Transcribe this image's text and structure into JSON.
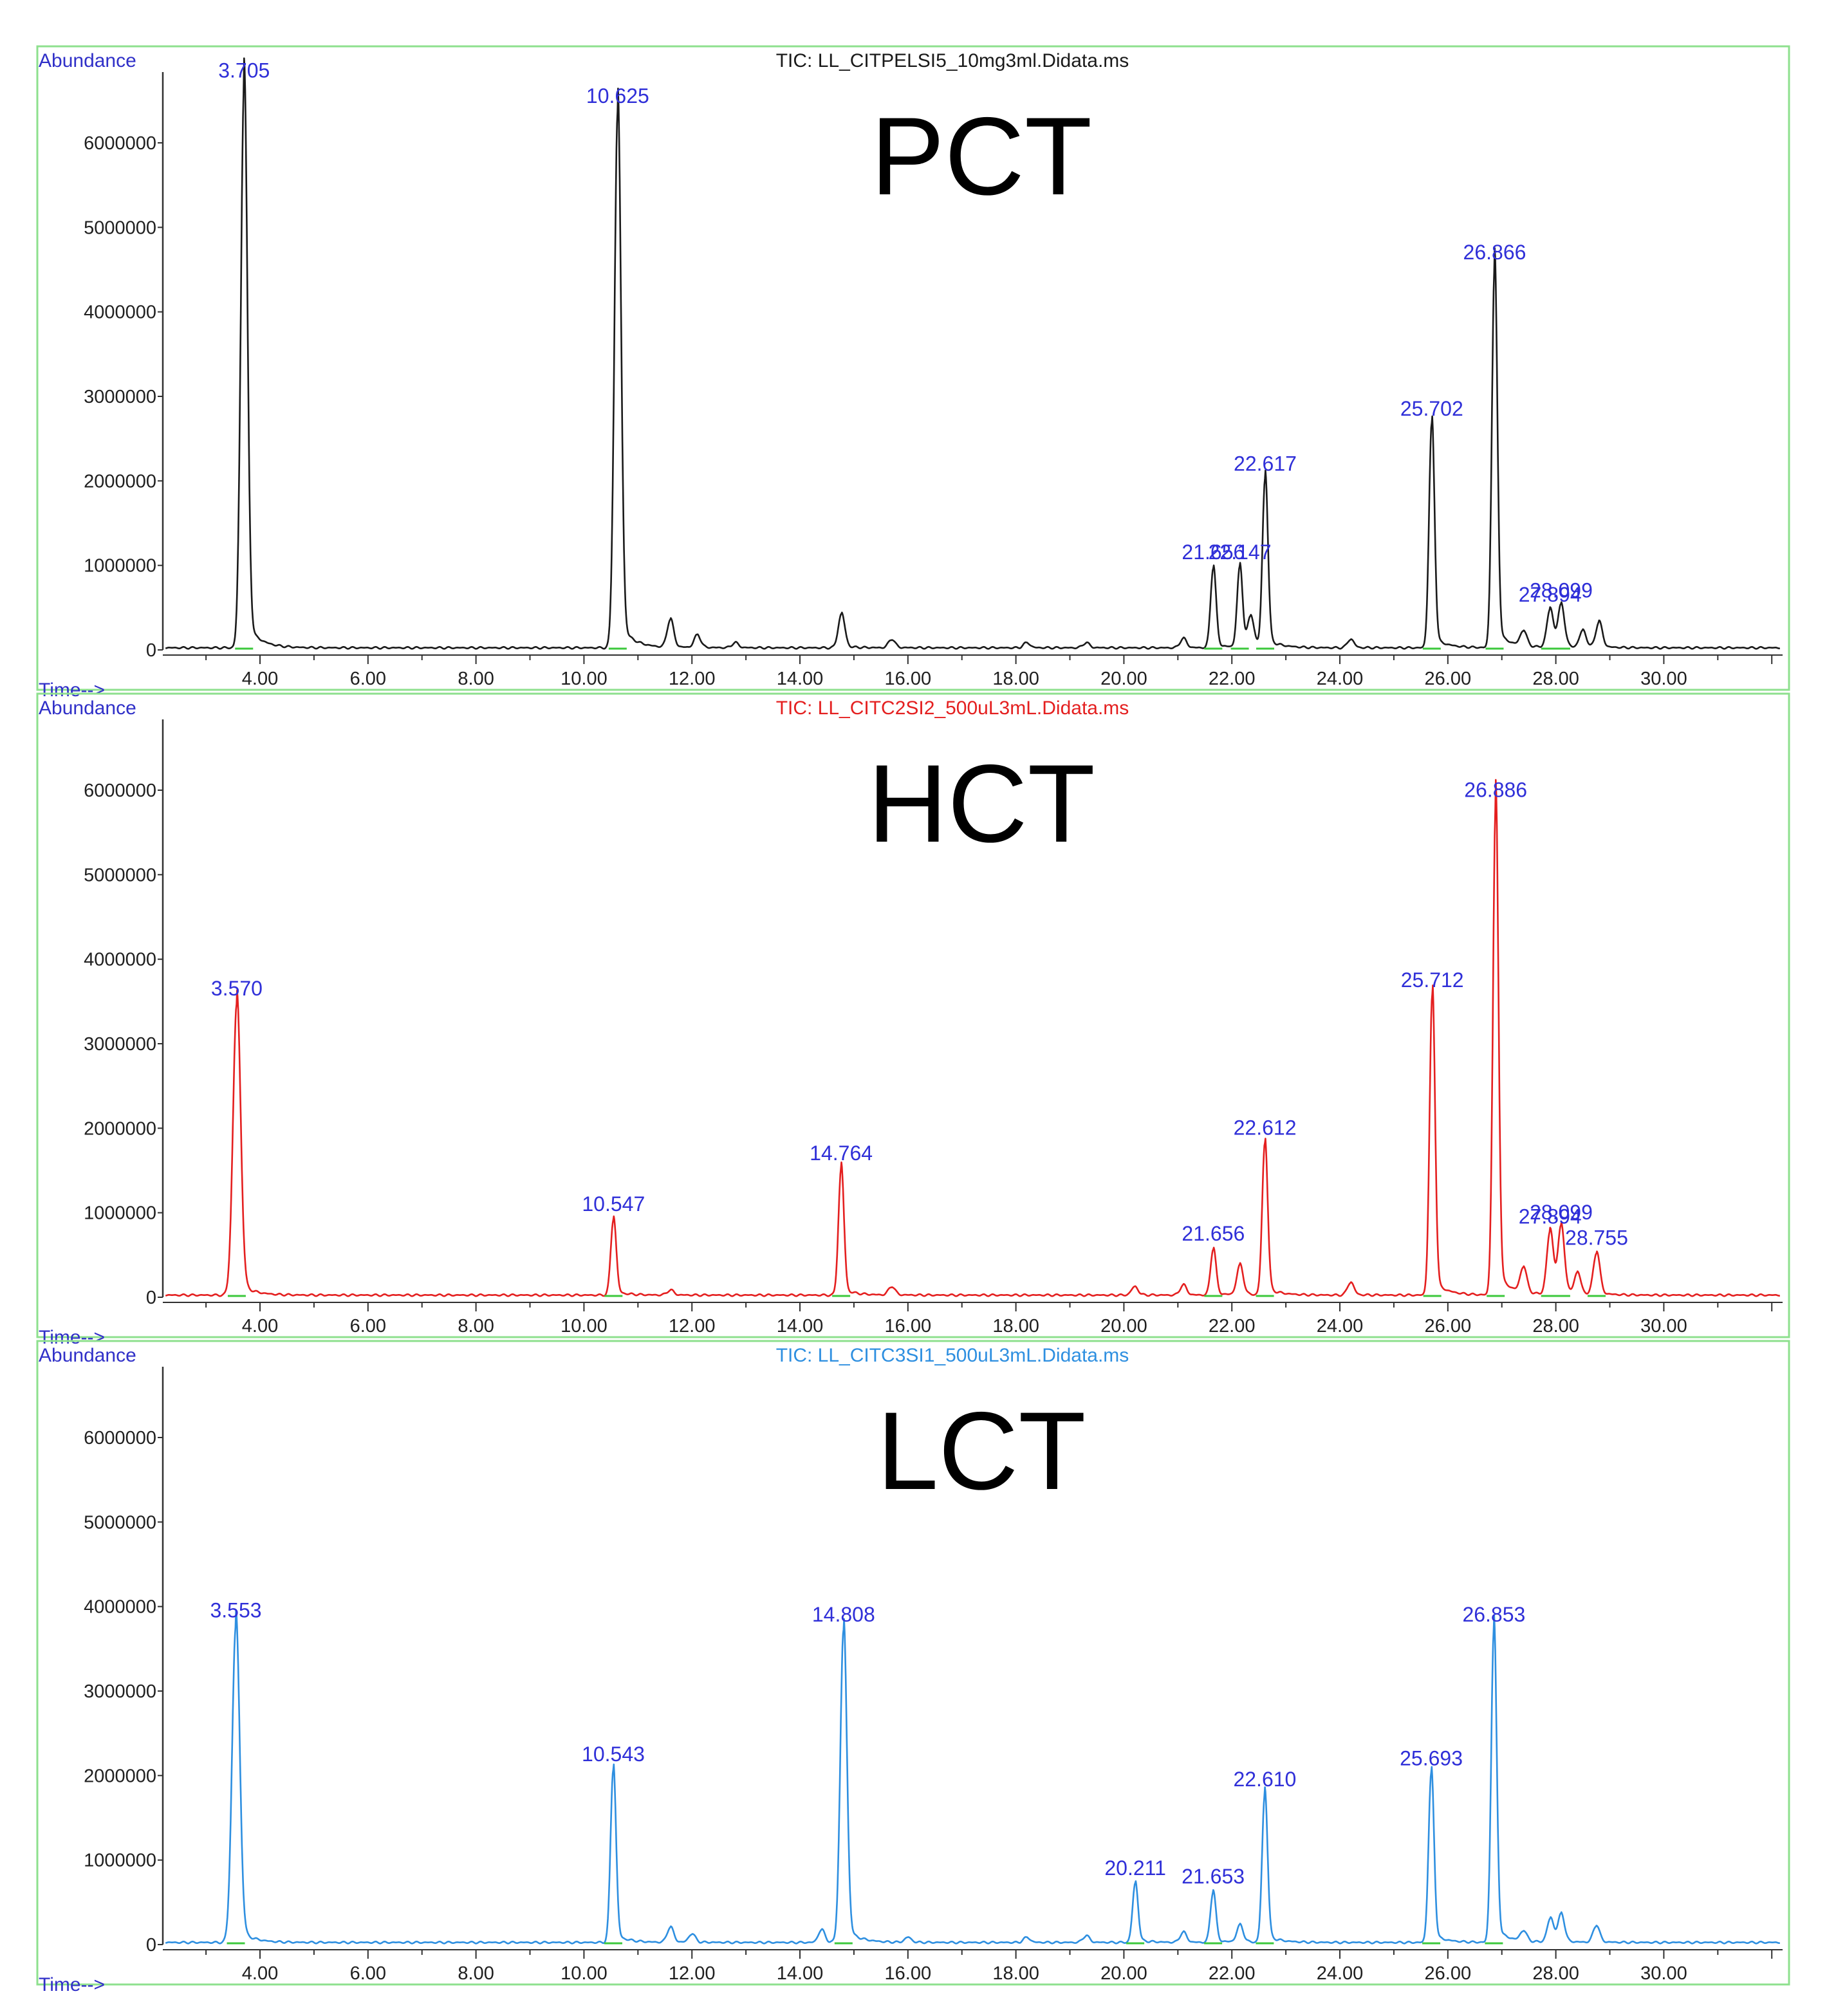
{
  "chart_data": [
    {
      "type": "line",
      "label": "PCT",
      "file_title": "TIC: LL_CITPELSI5_10mg3ml.Didata.ms",
      "ylabel": "Abundance",
      "xlabel": "Time-->",
      "xlim": [
        2.2,
        32.2
      ],
      "ylim": [
        0,
        6900000
      ],
      "xticks": [
        "4.00",
        "6.00",
        "8.00",
        "10.00",
        "12.00",
        "14.00",
        "16.00",
        "18.00",
        "20.00",
        "22.00",
        "24.00",
        "26.00",
        "28.00",
        "30.00"
      ],
      "yticks": [
        "0",
        "1000000",
        "2000000",
        "3000000",
        "4000000",
        "5000000",
        "6000000"
      ],
      "colors": {
        "line": "#1a1a1a",
        "text": "#1a1a1a"
      },
      "peaks": [
        {
          "label": "3.705",
          "x": 3.705,
          "y": 6650000,
          "width": 0.06
        },
        {
          "label": "10.625",
          "x": 10.625,
          "y": 6350000,
          "width": 0.06
        },
        {
          "label": "21.656",
          "x": 21.656,
          "y": 950000,
          "width": 0.05
        },
        {
          "label": "22.147",
          "x": 22.147,
          "y": 950000,
          "width": 0.05
        },
        {
          "label": "22.617",
          "x": 22.617,
          "y": 2000000,
          "width": 0.05
        },
        {
          "label": "25.702",
          "x": 25.702,
          "y": 2650000,
          "width": 0.05
        },
        {
          "label": "26.866",
          "x": 26.866,
          "y": 4500000,
          "width": 0.05
        },
        {
          "label": "27.894",
          "x": 27.894,
          "y": 450000,
          "width": 0.06
        },
        {
          "label": "28.099",
          "x": 28.099,
          "y": 500000,
          "width": 0.06
        }
      ],
      "minor_peaks": [
        {
          "x": 11.6,
          "y": 330000
        },
        {
          "x": 12.1,
          "y": 150000
        },
        {
          "x": 12.8,
          "y": 60000
        },
        {
          "x": 14.77,
          "y": 400000
        },
        {
          "x": 15.7,
          "y": 100000
        },
        {
          "x": 18.2,
          "y": 60000
        },
        {
          "x": 19.3,
          "y": 60000
        },
        {
          "x": 21.1,
          "y": 110000
        },
        {
          "x": 22.35,
          "y": 350000
        },
        {
          "x": 24.2,
          "y": 100000
        },
        {
          "x": 27.4,
          "y": 180000
        },
        {
          "x": 28.5,
          "y": 200000
        },
        {
          "x": 28.8,
          "y": 300000
        }
      ]
    },
    {
      "type": "line",
      "label": "HCT",
      "file_title": "TIC: LL_CITC2SI2_500uL3mL.Didata.ms",
      "ylabel": "Abundance",
      "xlabel": "Time-->",
      "xlim": [
        2.2,
        32.2
      ],
      "ylim": [
        0,
        6900000
      ],
      "xticks": [
        "4.00",
        "6.00",
        "8.00",
        "10.00",
        "12.00",
        "14.00",
        "16.00",
        "18.00",
        "20.00",
        "22.00",
        "24.00",
        "26.00",
        "28.00",
        "30.00"
      ],
      "yticks": [
        "0",
        "1000000",
        "2000000",
        "3000000",
        "4000000",
        "5000000",
        "6000000"
      ],
      "colors": {
        "line": "#e41f1f",
        "text": "#e41f1f"
      },
      "peaks": [
        {
          "label": "3.570",
          "x": 3.57,
          "y": 3450000,
          "width": 0.07
        },
        {
          "label": "10.547",
          "x": 10.547,
          "y": 900000,
          "width": 0.05
        },
        {
          "label": "14.764",
          "x": 14.764,
          "y": 1500000,
          "width": 0.05
        },
        {
          "label": "21.656",
          "x": 21.656,
          "y": 550000,
          "width": 0.05
        },
        {
          "label": "22.612",
          "x": 22.612,
          "y": 1800000,
          "width": 0.05
        },
        {
          "label": "25.712",
          "x": 25.712,
          "y": 3550000,
          "width": 0.05
        },
        {
          "label": "26.886",
          "x": 26.886,
          "y": 5800000,
          "width": 0.05
        },
        {
          "label": "27.894",
          "x": 27.894,
          "y": 750000,
          "width": 0.06
        },
        {
          "label": "28.099",
          "x": 28.099,
          "y": 800000,
          "width": 0.06
        },
        {
          "label": "28.755",
          "x": 28.755,
          "y": 500000,
          "width": 0.06
        }
      ],
      "minor_peaks": [
        {
          "x": 11.6,
          "y": 60000
        },
        {
          "x": 15.7,
          "y": 100000
        },
        {
          "x": 20.2,
          "y": 100000
        },
        {
          "x": 21.1,
          "y": 120000
        },
        {
          "x": 22.15,
          "y": 350000
        },
        {
          "x": 24.2,
          "y": 150000
        },
        {
          "x": 27.4,
          "y": 300000
        },
        {
          "x": 28.4,
          "y": 250000
        }
      ]
    },
    {
      "type": "line",
      "label": "LCT",
      "file_title": "TIC: LL_CITC3SI1_500uL3mL.Didata.ms",
      "ylabel": "Abundance",
      "xlabel": "Time-->",
      "xlim": [
        2.2,
        32.2
      ],
      "ylim": [
        0,
        6900000
      ],
      "xticks": [
        "4.00",
        "6.00",
        "8.00",
        "10.00",
        "12.00",
        "14.00",
        "16.00",
        "18.00",
        "20.00",
        "22.00",
        "24.00",
        "26.00",
        "28.00",
        "30.00"
      ],
      "yticks": [
        "0",
        "1000000",
        "2000000",
        "3000000",
        "4000000",
        "5000000",
        "6000000"
      ],
      "colors": {
        "line": "#2e8fe0",
        "text": "#2e8fe0"
      },
      "peaks": [
        {
          "label": "3.553",
          "x": 3.553,
          "y": 3750000,
          "width": 0.07
        },
        {
          "label": "10.543",
          "x": 10.543,
          "y": 2050000,
          "width": 0.05
        },
        {
          "label": "14.808",
          "x": 14.808,
          "y": 3700000,
          "width": 0.06
        },
        {
          "label": "20.211",
          "x": 20.211,
          "y": 700000,
          "width": 0.05
        },
        {
          "label": "21.653",
          "x": 21.653,
          "y": 600000,
          "width": 0.05
        },
        {
          "label": "22.610",
          "x": 22.61,
          "y": 1750000,
          "width": 0.05
        },
        {
          "label": "25.693",
          "x": 25.693,
          "y": 2000000,
          "width": 0.05
        },
        {
          "label": "26.853",
          "x": 26.853,
          "y": 3700000,
          "width": 0.05
        }
      ],
      "minor_peaks": [
        {
          "x": 11.6,
          "y": 180000
        },
        {
          "x": 12.0,
          "y": 100000
        },
        {
          "x": 14.4,
          "y": 150000
        },
        {
          "x": 16.0,
          "y": 60000
        },
        {
          "x": 18.2,
          "y": 60000
        },
        {
          "x": 19.3,
          "y": 80000
        },
        {
          "x": 21.1,
          "y": 120000
        },
        {
          "x": 22.15,
          "y": 200000
        },
        {
          "x": 27.4,
          "y": 120000
        },
        {
          "x": 27.9,
          "y": 280000
        },
        {
          "x": 28.1,
          "y": 330000
        },
        {
          "x": 28.75,
          "y": 200000
        }
      ]
    }
  ]
}
